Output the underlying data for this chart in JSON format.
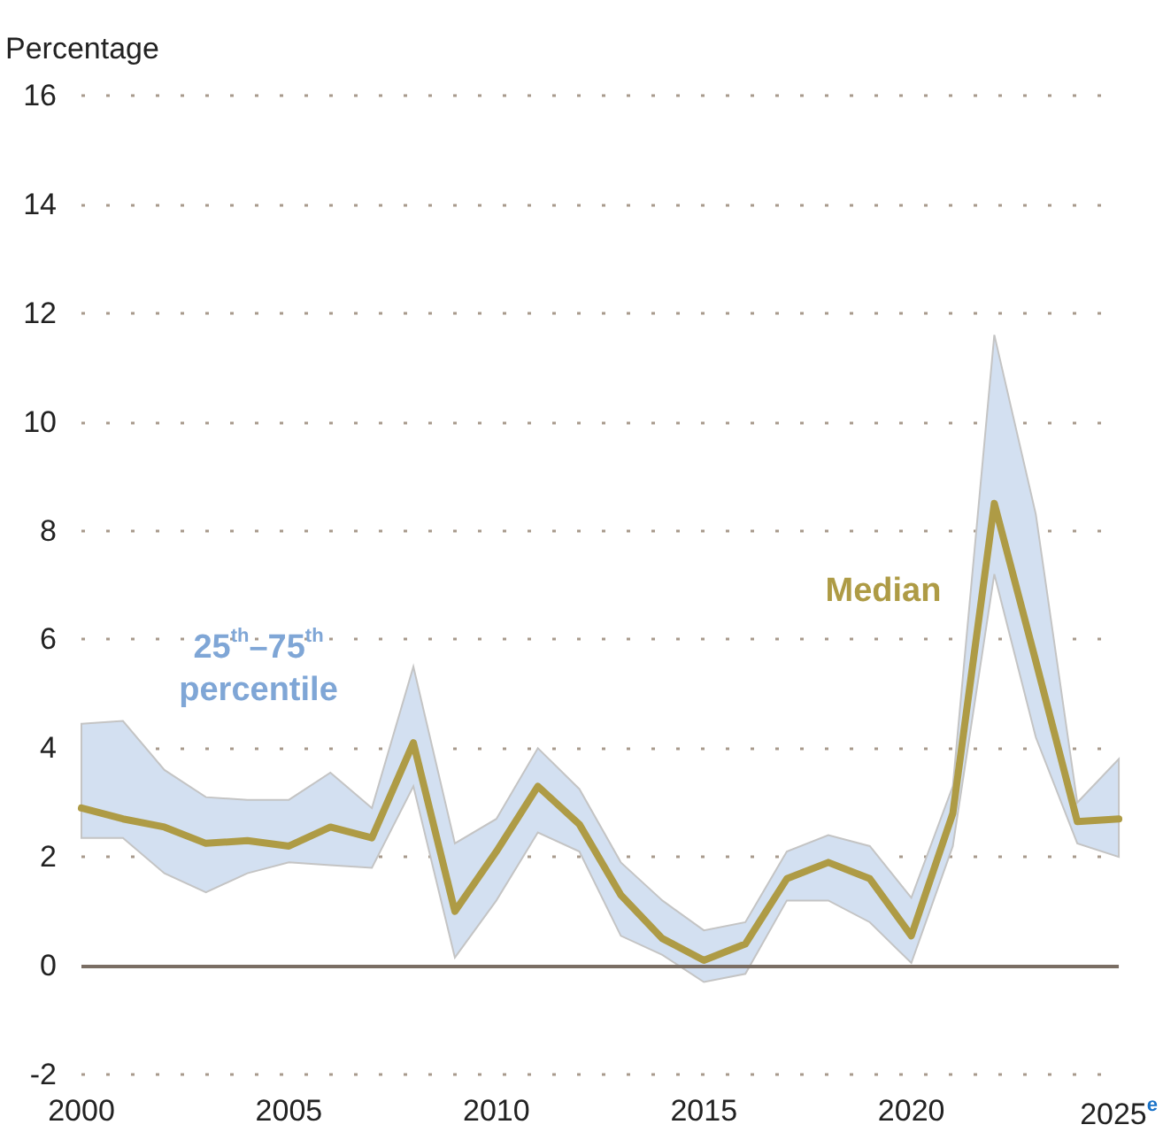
{
  "chart_data": {
    "type": "line",
    "ylabel": "Percentage",
    "annotations": [
      "25$^{th}$–75$^{th}$\npercentile"
    ],
    "x": [
      2000,
      2001,
      2002,
      2003,
      2004,
      2005,
      2006,
      2007,
      2008,
      2009,
      2010,
      2011,
      2012,
      2013,
      2014,
      2015,
      2016,
      2017,
      2018,
      2019,
      2020,
      2021,
      2022,
      2023,
      2024,
      2025
    ],
    "series": [
      {
        "name": "Median",
        "color": "#ae9b45",
        "values": [
          2.9,
          2.7,
          2.55,
          2.25,
          2.3,
          2.2,
          2.55,
          2.35,
          4.1,
          1.0,
          2.1,
          3.3,
          2.6,
          1.3,
          0.5,
          0.1,
          0.4,
          1.6,
          1.9,
          1.6,
          0.55,
          2.8,
          8.5,
          5.6,
          2.65,
          2.7
        ],
        "lower": [
          2.35,
          2.35,
          1.7,
          1.35,
          1.7,
          1.9,
          1.85,
          1.8,
          3.3,
          0.15,
          1.2,
          2.45,
          2.1,
          0.55,
          0.2,
          -0.3,
          -0.15,
          1.2,
          1.2,
          0.8,
          0.05,
          2.2,
          7.2,
          4.2,
          2.25,
          2.0
        ],
        "upper": [
          4.45,
          4.5,
          3.6,
          3.1,
          3.05,
          3.05,
          3.55,
          2.9,
          5.5,
          2.25,
          2.7,
          4.0,
          3.25,
          1.9,
          1.2,
          0.65,
          0.8,
          2.1,
          2.4,
          2.2,
          1.25,
          3.3,
          11.6,
          8.3,
          3.0,
          3.8
        ]
      }
    ],
    "xlim": [
      2000,
      2025
    ],
    "xticks": [
      2000,
      2005,
      2010,
      2015,
      2020,
      {
        "value": 2025,
        "label": "2025$^{e}$"
      }
    ],
    "ylim": [
      -2,
      16
    ],
    "yticks": [
      -2,
      0,
      2,
      4,
      6,
      8,
      10,
      12,
      14,
      16
    ],
    "grid": "y",
    "ref_lines": [
      {
        "axis": "y",
        "value": 0,
        "color": "#7a6e64",
        "line_style": "solid"
      }
    ],
    "marker": "none",
    "line_style": "solid",
    "legend": false
  }
}
